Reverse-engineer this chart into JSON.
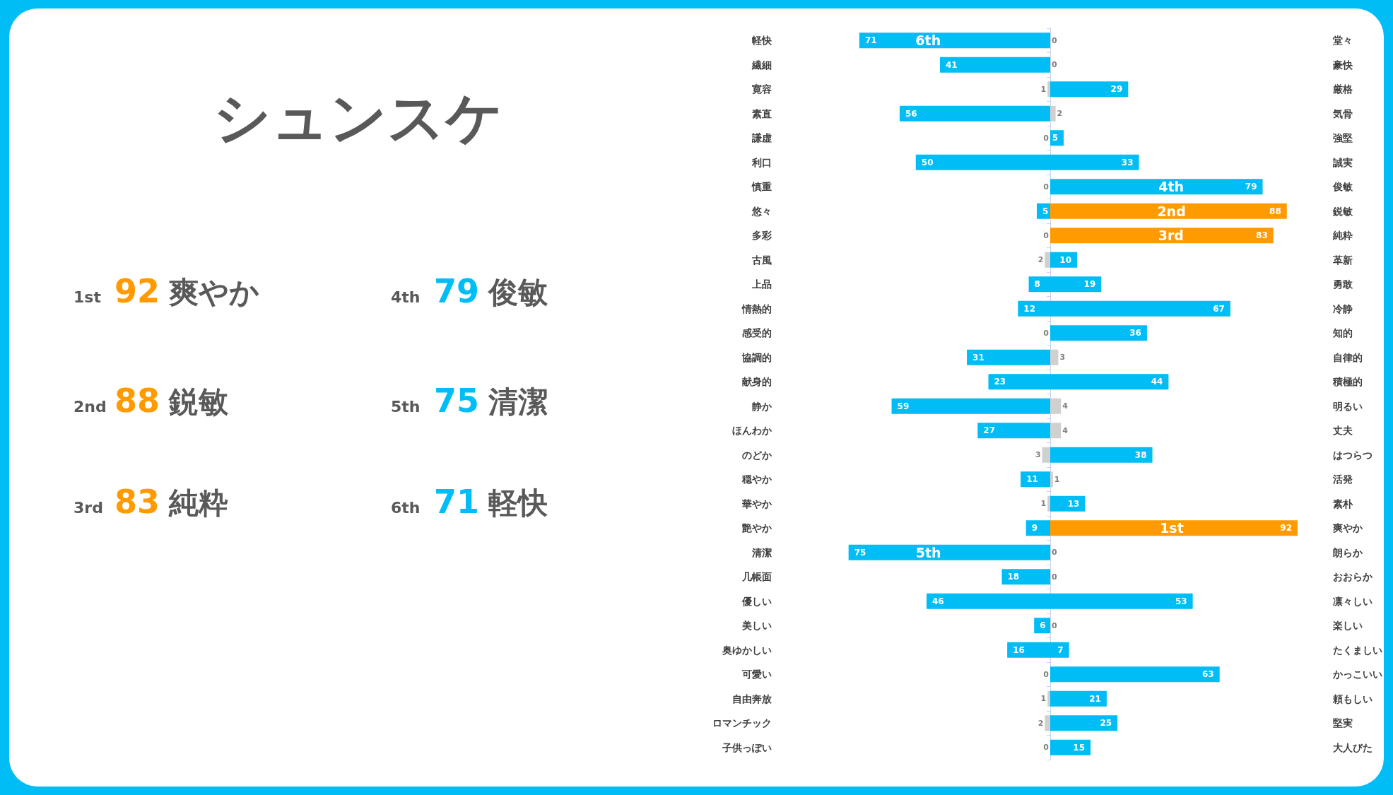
{
  "chart_data": [
    {
      "type": "other",
      "title": "シュンスケ",
      "annotations": [
        "1st",
        "92",
        "爽やか",
        "4th",
        "79",
        "俊敏",
        "2nd",
        "88",
        "鋭敏",
        "5th",
        "75",
        "清潔",
        "3rd",
        "83",
        "純粋",
        "6th",
        "71",
        "軽快"
      ],
      "colors": [
        "#ff9a00",
        "#00bdf6",
        "#ff9a00",
        "#00bdf6",
        "#ff9a00",
        "#00bdf6"
      ]
    },
    {
      "type": "bar",
      "orientation": "horizontal",
      "categories": [
        "軽快",
        "繊細",
        "寛容",
        "素直",
        "謙虚",
        "利口",
        "慎重",
        "悠々",
        "多彩",
        "古風",
        "上品",
        "情熱的",
        "感受的",
        "協調的",
        "献身的",
        "静か",
        "ほんわか",
        "のどか",
        "穏やか",
        "華やか",
        "艶やか",
        "清潔",
        "几帳面",
        "優しい",
        "美しい",
        "奥ゆかしい",
        "可愛い",
        "自由奔放",
        "ロマンチック",
        "子供っぽい"
      ],
      "values": [
        71,
        41,
        1,
        56,
        0,
        50,
        0,
        5,
        0,
        2,
        8,
        12,
        0,
        31,
        23,
        59,
        27,
        3,
        11,
        1,
        9,
        75,
        18,
        46,
        6,
        16,
        0,
        1,
        2,
        0
      ],
      "colors": [
        "#00bdf6",
        "#00bdf6",
        "#d0d0d0",
        "#00bdf6",
        "#d0d0d0",
        "#00bdf6",
        "#d0d0d0",
        "#00bdf6",
        "#d0d0d0",
        "#d0d0d0",
        "#00bdf6",
        "#00bdf6",
        "#d0d0d0",
        "#00bdf6",
        "#00bdf6",
        "#00bdf6",
        "#00bdf6",
        "#d0d0d0",
        "#00bdf6",
        "#d0d0d0",
        "#00bdf6",
        "#00bdf6",
        "#00bdf6",
        "#00bdf6",
        "#00bdf6",
        "#00bdf6",
        "#d0d0d0",
        "#d0d0d0",
        "#d0d0d0",
        "#d0d0d0"
      ],
      "data_labels": true,
      "tick_labels": "y",
      "annotations": [
        {
          "text": "6th",
          "x": 45.4,
          "y": "軽快"
        },
        {
          "text": "5th",
          "x": 45.3,
          "y": "清潔"
        }
      ]
    },
    {
      "type": "bar",
      "orientation": "horizontal",
      "categories": [
        "堂々",
        "豪快",
        "厳格",
        "気骨",
        "強堅",
        "誠実",
        "俊敏",
        "鋭敏",
        "純粋",
        "革新",
        "勇敢",
        "冷静",
        "知的",
        "自律的",
        "積極的",
        "明るい",
        "丈夫",
        "はつらつ",
        "活発",
        "素朴",
        "爽やか",
        "朗らか",
        "おおらか",
        "凛々しい",
        "楽しい",
        "たくましい",
        "かっこいい",
        "頼もしい",
        "堅実",
        "大人びた"
      ],
      "values": [
        0,
        0,
        29,
        2,
        5,
        33,
        79,
        88,
        83,
        10,
        19,
        67,
        36,
        3,
        44,
        4,
        4,
        38,
        1,
        13,
        92,
        0,
        0,
        53,
        0,
        7,
        63,
        21,
        25,
        15
      ],
      "colors": [
        "#d0d0d0",
        "#d0d0d0",
        "#00bdf6",
        "#d0d0d0",
        "#00bdf6",
        "#00bdf6",
        "#00bdf6",
        "#ff9a00",
        "#ff9a00",
        "#00bdf6",
        "#00bdf6",
        "#00bdf6",
        "#00bdf6",
        "#d0d0d0",
        "#00bdf6",
        "#d0d0d0",
        "#d0d0d0",
        "#00bdf6",
        "#d0d0d0",
        "#00bdf6",
        "#ff9a00",
        "#d0d0d0",
        "#d0d0d0",
        "#00bdf6",
        "#d0d0d0",
        "#00bdf6",
        "#00bdf6",
        "#00bdf6",
        "#00bdf6",
        "#00bdf6"
      ],
      "data_labels": true,
      "tick_labels": "y",
      "annotations": [
        {
          "text": "4th",
          "x": 45,
          "y": "俊敏"
        },
        {
          "text": "2nd",
          "x": 45.1,
          "y": "鋭敏"
        },
        {
          "text": "3rd",
          "x": 44.9,
          "y": "純粋"
        },
        {
          "text": "1st",
          "x": 45.2,
          "y": "爽やか"
        }
      ]
    }
  ]
}
